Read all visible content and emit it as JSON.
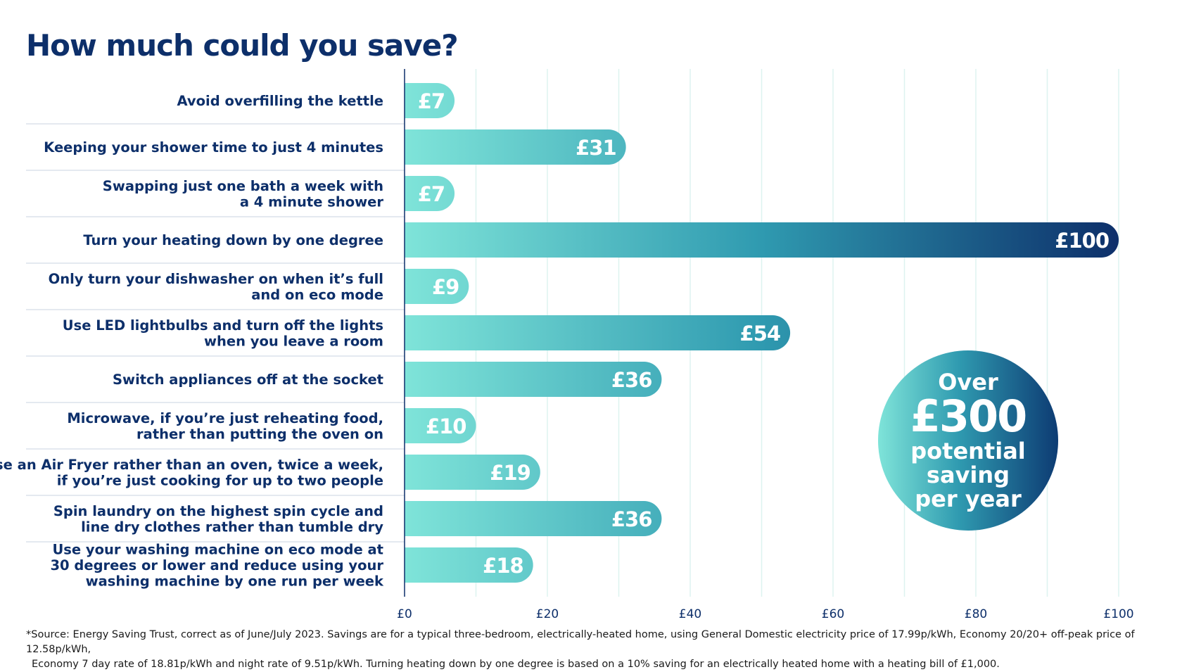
{
  "title": "How much could you save?",
  "chart_data": {
    "type": "bar",
    "orientation": "horizontal",
    "categories": [
      [
        "Avoid overfilling the kettle"
      ],
      [
        "Keeping your shower time to just 4 minutes"
      ],
      [
        "Swapping just one bath a week with",
        "a 4 minute shower"
      ],
      [
        "Turn your heating down by one degree"
      ],
      [
        "Only turn your dishwasher on when it’s full",
        "and on eco mode"
      ],
      [
        "Use LED lightbulbs and turn off the lights",
        "when you leave a room"
      ],
      [
        "Switch appliances off at the socket"
      ],
      [
        "Microwave, if you’re just reheating food,",
        "rather than putting the oven on"
      ],
      [
        "Use an Air Fryer rather than an oven, twice a week,",
        "if you’re just cooking for up to two people"
      ],
      [
        "Spin laundry on the highest spin cycle and",
        "line dry clothes rather than tumble dry"
      ],
      [
        "Use your washing machine on eco mode at",
        "30 degrees or lower and reduce using your",
        "washing machine by one run per week"
      ]
    ],
    "values": [
      7,
      31,
      7,
      100,
      9,
      54,
      36,
      10,
      19,
      36,
      18
    ],
    "value_labels": [
      "£7",
      "£31",
      "£7",
      "£100",
      "£9",
      "£54",
      "£36",
      "£10",
      "£19",
      "£36",
      "£18"
    ],
    "xlim": [
      0,
      100
    ],
    "xticks": [
      0,
      20,
      40,
      60,
      80,
      100
    ],
    "xtick_labels": [
      "£0",
      "£20",
      "£40",
      "£60",
      "£80",
      "£100"
    ],
    "grid": true,
    "colors": {
      "bar_start": "#7fe4d9",
      "bar_mid": "#2f9ab0",
      "bar_end": "#0d2f6a",
      "label_text": "#0d2f6a",
      "grid": "#ddf3f0"
    }
  },
  "badge": {
    "line1": "Over",
    "line2": "£300",
    "line3": "potential",
    "line4": "saving",
    "line5": "per year"
  },
  "footnote": {
    "line1": "*Source: Energy Saving Trust, correct as of June/July 2023. Savings are for a typical three-bedroom, electrically-heated home, using General Domestic electricity price of 17.99p/kWh, Economy 20/20+ off-peak price of 12.58p/kWh,",
    "line2": "Economy 7 day rate of 18.81p/kWh and night rate of 9.51p/kWh. Turning heating down by one degree is based on a 10% saving for an electrically heated home with a heating bill of £1,000."
  }
}
